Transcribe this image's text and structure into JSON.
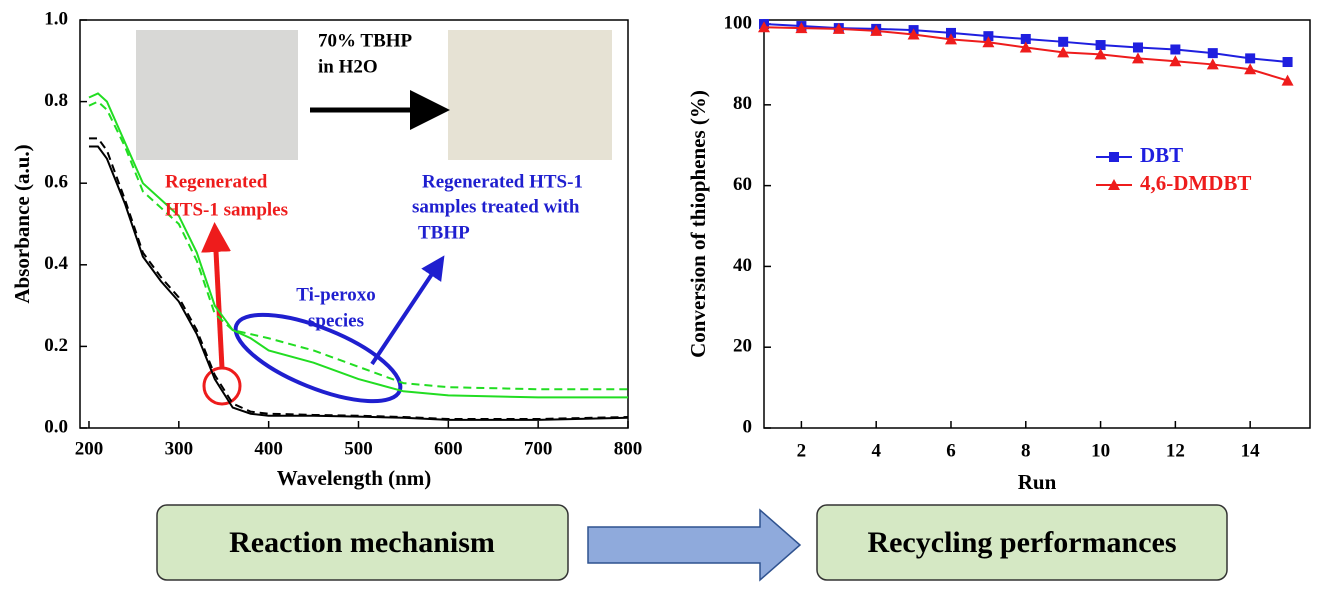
{
  "chart_data": [
    {
      "type": "line",
      "xlabel": "Wavelength (nm)",
      "ylabel": "Absorbance (a.u.)",
      "x": [
        200,
        210,
        220,
        240,
        260,
        280,
        300,
        320,
        340,
        360,
        380,
        400,
        450,
        500,
        550,
        600,
        700,
        800
      ],
      "series": [
        {
          "color": "#22dd22",
          "dash": false,
          "values": [
            0.81,
            0.82,
            0.8,
            0.7,
            0.6,
            0.56,
            0.52,
            0.43,
            0.3,
            0.24,
            0.22,
            0.19,
            0.16,
            0.12,
            0.09,
            0.08,
            0.075,
            0.075
          ]
        },
        {
          "color": "#22dd22",
          "dash": true,
          "values": [
            0.79,
            0.8,
            0.78,
            0.69,
            0.58,
            0.54,
            0.5,
            0.41,
            0.28,
            0.24,
            0.23,
            0.22,
            0.19,
            0.15,
            0.11,
            0.1,
            0.095,
            0.095
          ]
        },
        {
          "color": "#000000",
          "dash": false,
          "values": [
            0.69,
            0.69,
            0.66,
            0.55,
            0.42,
            0.36,
            0.31,
            0.23,
            0.12,
            0.05,
            0.035,
            0.03,
            0.03,
            0.028,
            0.025,
            0.02,
            0.02,
            0.025
          ]
        },
        {
          "color": "#000000",
          "dash": true,
          "values": [
            0.71,
            0.71,
            0.68,
            0.56,
            0.43,
            0.37,
            0.32,
            0.24,
            0.13,
            0.06,
            0.04,
            0.035,
            0.032,
            0.03,
            0.027,
            0.022,
            0.022,
            0.027
          ]
        }
      ],
      "xlim": [
        190,
        800
      ],
      "xticks": [
        200,
        300,
        400,
        500,
        600,
        700,
        800
      ],
      "ylim": [
        0,
        1
      ],
      "yticks": [
        {
          "value": 0,
          "label": "0.0"
        },
        0.2,
        0.4,
        0.6,
        0.8,
        {
          "value": 1,
          "label": "1.0"
        }
      ],
      "annotations": [
        {
          "text": "70% TBHP",
          "color": "#000000"
        },
        {
          "text": "in H2O",
          "color": "#000000"
        },
        {
          "text": "Regenerated",
          "color": "#ee1c1c"
        },
        {
          "text": "HTS-1 samples",
          "color": "#ee1c1c"
        },
        {
          "text": "Regenerated HTS-1",
          "color": "#1f1fcf"
        },
        {
          "text": "samples treated with",
          "color": "#1f1fcf"
        },
        {
          "text": "TBHP",
          "color": "#1f1fcf"
        },
        {
          "text": "Ti-peroxo",
          "color": "#1f1fcf"
        },
        {
          "text": "species",
          "color": "#1f1fcf"
        }
      ]
    },
    {
      "type": "line",
      "xlabel": "Run",
      "ylabel": "Conversion of thiophenes (%)",
      "x": [
        1,
        2,
        3,
        4,
        5,
        6,
        7,
        8,
        9,
        10,
        11,
        12,
        13,
        14,
        15
      ],
      "series": [
        {
          "name": "DBT",
          "color": "#1f1fdf",
          "marker": "square",
          "values": [
            100,
            99.5,
            99,
            98.8,
            98.5,
            97.8,
            97,
            96.3,
            95.6,
            94.8,
            94.2,
            93.7,
            92.8,
            91.5,
            90.6
          ]
        },
        {
          "name": "4,6-DMDBT",
          "color": "#ee1c1c",
          "marker": "triangle",
          "values": [
            99.2,
            99,
            98.8,
            98.3,
            97.4,
            96.2,
            95.5,
            94.2,
            93,
            92.5,
            91.5,
            90.8,
            90,
            88.8,
            86
          ]
        }
      ],
      "xlim": [
        1,
        15.6
      ],
      "xticks": [
        2,
        4,
        6,
        8,
        10,
        12,
        14
      ],
      "ylim": [
        0,
        101
      ],
      "yticks": [
        0,
        20,
        40,
        60,
        80,
        100
      ],
      "legend": "upper-right"
    }
  ],
  "flow": {
    "boxes": [
      "Reaction mechanism",
      "Recycling performances"
    ]
  }
}
